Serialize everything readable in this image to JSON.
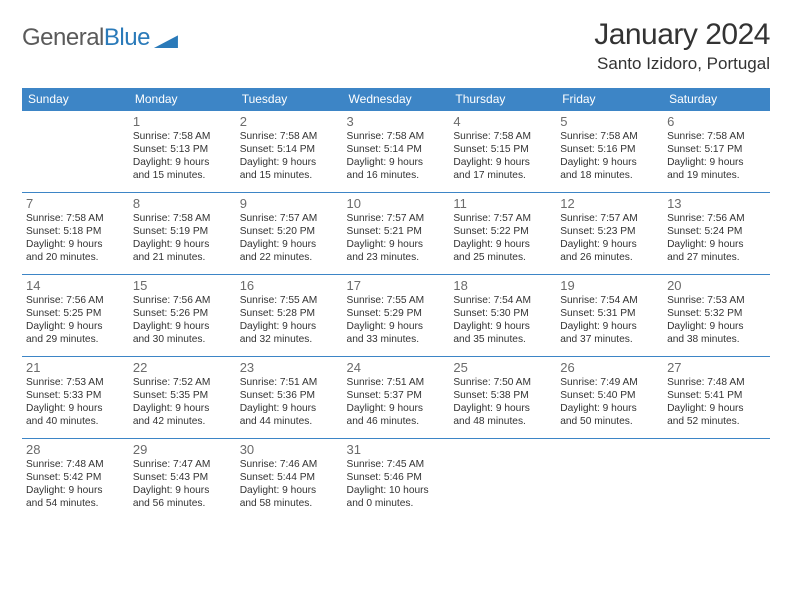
{
  "logo": {
    "text1": "General",
    "text2": "Blue"
  },
  "title": "January 2024",
  "location": "Santo Izidoro, Portugal",
  "colors": {
    "header_bg": "#3d85c6",
    "header_text": "#ffffff",
    "border": "#3d85c6",
    "daynum": "#6b6b6b",
    "body_text": "#333333",
    "logo_gray": "#5a5a5a",
    "logo_blue": "#2a7ab9"
  },
  "week_header": [
    "Sunday",
    "Monday",
    "Tuesday",
    "Wednesday",
    "Thursday",
    "Friday",
    "Saturday"
  ],
  "weeks": [
    [
      {
        "day": "",
        "lines": []
      },
      {
        "day": "1",
        "lines": [
          "Sunrise: 7:58 AM",
          "Sunset: 5:13 PM",
          "Daylight: 9 hours",
          "and 15 minutes."
        ]
      },
      {
        "day": "2",
        "lines": [
          "Sunrise: 7:58 AM",
          "Sunset: 5:14 PM",
          "Daylight: 9 hours",
          "and 15 minutes."
        ]
      },
      {
        "day": "3",
        "lines": [
          "Sunrise: 7:58 AM",
          "Sunset: 5:14 PM",
          "Daylight: 9 hours",
          "and 16 minutes."
        ]
      },
      {
        "day": "4",
        "lines": [
          "Sunrise: 7:58 AM",
          "Sunset: 5:15 PM",
          "Daylight: 9 hours",
          "and 17 minutes."
        ]
      },
      {
        "day": "5",
        "lines": [
          "Sunrise: 7:58 AM",
          "Sunset: 5:16 PM",
          "Daylight: 9 hours",
          "and 18 minutes."
        ]
      },
      {
        "day": "6",
        "lines": [
          "Sunrise: 7:58 AM",
          "Sunset: 5:17 PM",
          "Daylight: 9 hours",
          "and 19 minutes."
        ]
      }
    ],
    [
      {
        "day": "7",
        "lines": [
          "Sunrise: 7:58 AM",
          "Sunset: 5:18 PM",
          "Daylight: 9 hours",
          "and 20 minutes."
        ]
      },
      {
        "day": "8",
        "lines": [
          "Sunrise: 7:58 AM",
          "Sunset: 5:19 PM",
          "Daylight: 9 hours",
          "and 21 minutes."
        ]
      },
      {
        "day": "9",
        "lines": [
          "Sunrise: 7:57 AM",
          "Sunset: 5:20 PM",
          "Daylight: 9 hours",
          "and 22 minutes."
        ]
      },
      {
        "day": "10",
        "lines": [
          "Sunrise: 7:57 AM",
          "Sunset: 5:21 PM",
          "Daylight: 9 hours",
          "and 23 minutes."
        ]
      },
      {
        "day": "11",
        "lines": [
          "Sunrise: 7:57 AM",
          "Sunset: 5:22 PM",
          "Daylight: 9 hours",
          "and 25 minutes."
        ]
      },
      {
        "day": "12",
        "lines": [
          "Sunrise: 7:57 AM",
          "Sunset: 5:23 PM",
          "Daylight: 9 hours",
          "and 26 minutes."
        ]
      },
      {
        "day": "13",
        "lines": [
          "Sunrise: 7:56 AM",
          "Sunset: 5:24 PM",
          "Daylight: 9 hours",
          "and 27 minutes."
        ]
      }
    ],
    [
      {
        "day": "14",
        "lines": [
          "Sunrise: 7:56 AM",
          "Sunset: 5:25 PM",
          "Daylight: 9 hours",
          "and 29 minutes."
        ]
      },
      {
        "day": "15",
        "lines": [
          "Sunrise: 7:56 AM",
          "Sunset: 5:26 PM",
          "Daylight: 9 hours",
          "and 30 minutes."
        ]
      },
      {
        "day": "16",
        "lines": [
          "Sunrise: 7:55 AM",
          "Sunset: 5:28 PM",
          "Daylight: 9 hours",
          "and 32 minutes."
        ]
      },
      {
        "day": "17",
        "lines": [
          "Sunrise: 7:55 AM",
          "Sunset: 5:29 PM",
          "Daylight: 9 hours",
          "and 33 minutes."
        ]
      },
      {
        "day": "18",
        "lines": [
          "Sunrise: 7:54 AM",
          "Sunset: 5:30 PM",
          "Daylight: 9 hours",
          "and 35 minutes."
        ]
      },
      {
        "day": "19",
        "lines": [
          "Sunrise: 7:54 AM",
          "Sunset: 5:31 PM",
          "Daylight: 9 hours",
          "and 37 minutes."
        ]
      },
      {
        "day": "20",
        "lines": [
          "Sunrise: 7:53 AM",
          "Sunset: 5:32 PM",
          "Daylight: 9 hours",
          "and 38 minutes."
        ]
      }
    ],
    [
      {
        "day": "21",
        "lines": [
          "Sunrise: 7:53 AM",
          "Sunset: 5:33 PM",
          "Daylight: 9 hours",
          "and 40 minutes."
        ]
      },
      {
        "day": "22",
        "lines": [
          "Sunrise: 7:52 AM",
          "Sunset: 5:35 PM",
          "Daylight: 9 hours",
          "and 42 minutes."
        ]
      },
      {
        "day": "23",
        "lines": [
          "Sunrise: 7:51 AM",
          "Sunset: 5:36 PM",
          "Daylight: 9 hours",
          "and 44 minutes."
        ]
      },
      {
        "day": "24",
        "lines": [
          "Sunrise: 7:51 AM",
          "Sunset: 5:37 PM",
          "Daylight: 9 hours",
          "and 46 minutes."
        ]
      },
      {
        "day": "25",
        "lines": [
          "Sunrise: 7:50 AM",
          "Sunset: 5:38 PM",
          "Daylight: 9 hours",
          "and 48 minutes."
        ]
      },
      {
        "day": "26",
        "lines": [
          "Sunrise: 7:49 AM",
          "Sunset: 5:40 PM",
          "Daylight: 9 hours",
          "and 50 minutes."
        ]
      },
      {
        "day": "27",
        "lines": [
          "Sunrise: 7:48 AM",
          "Sunset: 5:41 PM",
          "Daylight: 9 hours",
          "and 52 minutes."
        ]
      }
    ],
    [
      {
        "day": "28",
        "lines": [
          "Sunrise: 7:48 AM",
          "Sunset: 5:42 PM",
          "Daylight: 9 hours",
          "and 54 minutes."
        ]
      },
      {
        "day": "29",
        "lines": [
          "Sunrise: 7:47 AM",
          "Sunset: 5:43 PM",
          "Daylight: 9 hours",
          "and 56 minutes."
        ]
      },
      {
        "day": "30",
        "lines": [
          "Sunrise: 7:46 AM",
          "Sunset: 5:44 PM",
          "Daylight: 9 hours",
          "and 58 minutes."
        ]
      },
      {
        "day": "31",
        "lines": [
          "Sunrise: 7:45 AM",
          "Sunset: 5:46 PM",
          "Daylight: 10 hours",
          "and 0 minutes."
        ]
      },
      {
        "day": "",
        "lines": []
      },
      {
        "day": "",
        "lines": []
      },
      {
        "day": "",
        "lines": []
      }
    ]
  ]
}
